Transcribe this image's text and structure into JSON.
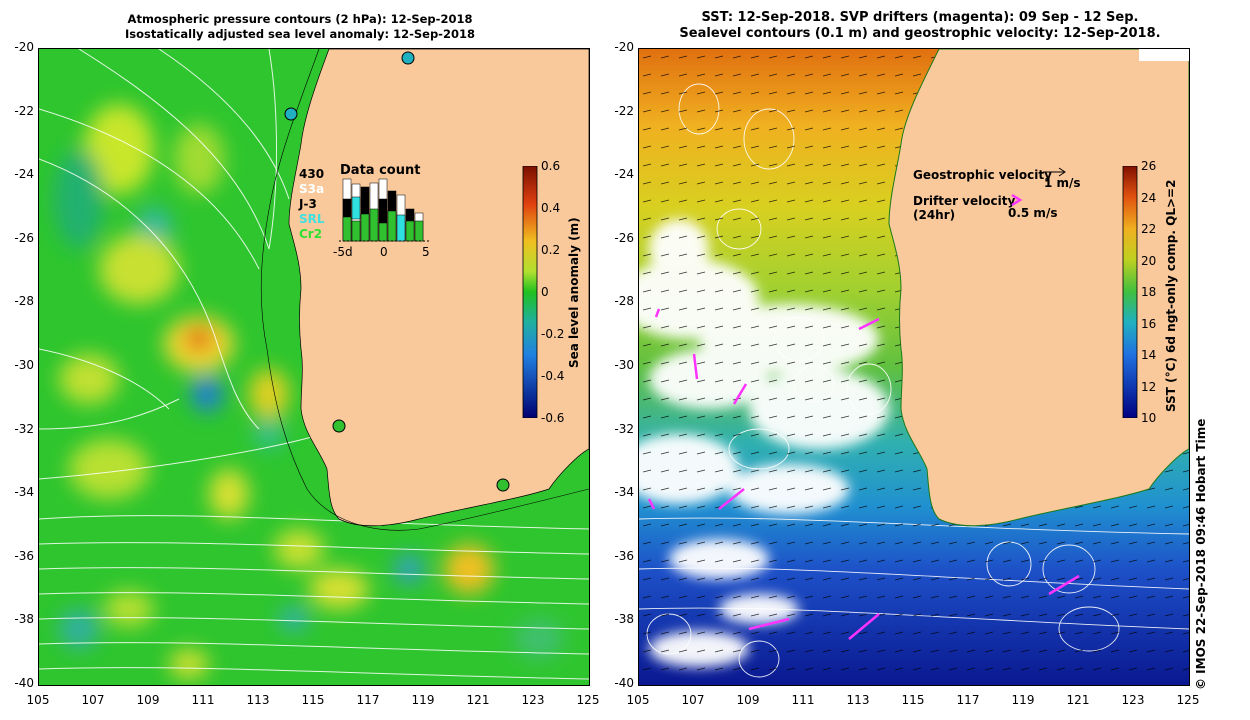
{
  "left": {
    "title_line1": "Atmospheric pressure contours (2 hPa): 12-Sep-2018",
    "title_line2": "Isostatically adjusted sea level anomaly: 12-Sep-2018",
    "colorbar_label": "Sea level anomaly (m)",
    "colorbar_ticks": [
      "0.6",
      "0.4",
      "0.2",
      "0",
      "-0.2",
      "-0.4",
      "-0.6"
    ],
    "inset": {
      "title": "Data count",
      "lines": [
        "430",
        "S3a",
        "J-3",
        "SRL",
        "Cr2"
      ],
      "axis_ticks": [
        "-5d",
        "0",
        "5"
      ]
    }
  },
  "right": {
    "title_line1": "SST: 12-Sep-2018. SVP drifters (magenta): 09 Sep - 12 Sep.",
    "title_line2": "Sealevel contours (0.1 m) and geostrophic velocity: 12-Sep-2018.",
    "colorbar_label": "SST (°C) 6d ngt-only comp. QL>=2",
    "colorbar_ticks": [
      "26",
      "24",
      "22",
      "20",
      "18",
      "16",
      "14",
      "12",
      "10"
    ],
    "legend": {
      "geo_label": "Geostrophic velocity",
      "geo_scale": "1 m/s",
      "drifter_label": "Drifter velocity",
      "drifter_sub": "(24hr)",
      "drifter_scale": "0.5 m/s"
    }
  },
  "axes": {
    "y_ticks": [
      "-20",
      "-22",
      "-24",
      "-26",
      "-28",
      "-30",
      "-32",
      "-34",
      "-36",
      "-38",
      "-40"
    ],
    "x_ticks": [
      "105",
      "107",
      "109",
      "111",
      "113",
      "115",
      "117",
      "119",
      "121",
      "123",
      "125"
    ]
  },
  "credit": "©  IMOS 22-Sep-2018 09:46 Hobart Time",
  "colors": {
    "land": "#f9c89b",
    "sla_bg": "#26c526",
    "sst_warm": "#e8a010",
    "sst_cold": "#1d4fc7",
    "drifter": "#ff33ff"
  }
}
